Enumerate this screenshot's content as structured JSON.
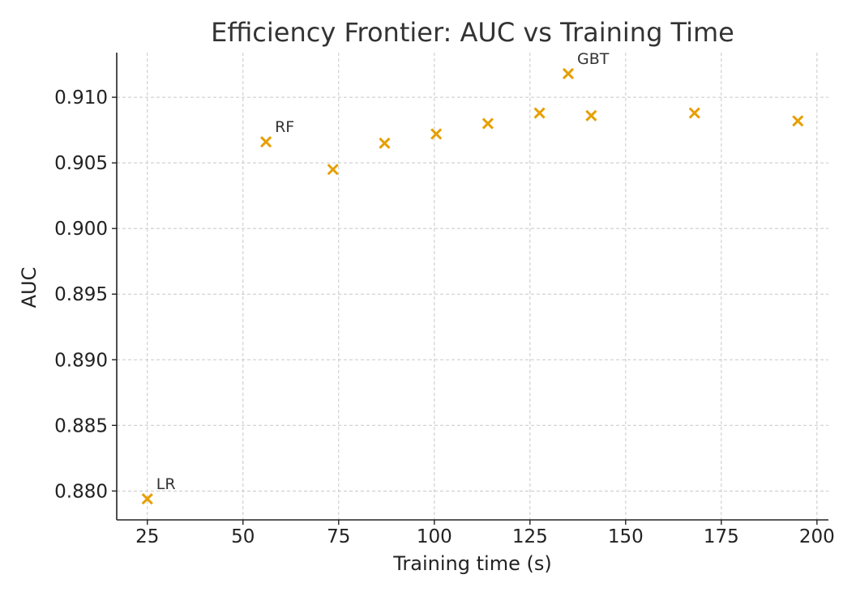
{
  "chart_data": {
    "type": "scatter",
    "title": "Efficiency Frontier: AUC vs Training Time",
    "xlabel": "Training time (s)",
    "ylabel": "AUC",
    "xlim": [
      17,
      203
    ],
    "ylim": [
      0.8778,
      0.9134
    ],
    "xticks": [
      25,
      50,
      75,
      100,
      125,
      150,
      175,
      200
    ],
    "yticks": [
      0.88,
      0.885,
      0.89,
      0.895,
      0.9,
      0.905,
      0.91
    ],
    "ytick_labels": [
      "0.880",
      "0.885",
      "0.890",
      "0.895",
      "0.900",
      "0.905",
      "0.910"
    ],
    "grid": true,
    "marker": "x",
    "color": "#E69F00",
    "points": [
      {
        "x": 25.0,
        "y": 0.8794,
        "label": "LR"
      },
      {
        "x": 56.0,
        "y": 0.9066,
        "label": "RF"
      },
      {
        "x": 73.5,
        "y": 0.9045,
        "label": ""
      },
      {
        "x": 87.0,
        "y": 0.9065,
        "label": ""
      },
      {
        "x": 100.5,
        "y": 0.9072,
        "label": ""
      },
      {
        "x": 114.0,
        "y": 0.908,
        "label": ""
      },
      {
        "x": 127.5,
        "y": 0.9088,
        "label": ""
      },
      {
        "x": 135.0,
        "y": 0.9118,
        "label": "GBT"
      },
      {
        "x": 141.0,
        "y": 0.9086,
        "label": ""
      },
      {
        "x": 168.0,
        "y": 0.9088,
        "label": ""
      },
      {
        "x": 195.0,
        "y": 0.9082,
        "label": ""
      }
    ]
  }
}
